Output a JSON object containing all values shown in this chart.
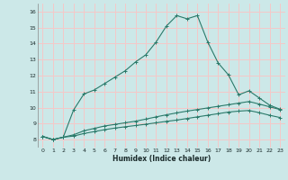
{
  "xlabel": "Humidex (Indice chaleur)",
  "bg_color": "#cce8e8",
  "grid_color": "#f5c8c8",
  "line_color": "#2a7a6a",
  "xlim": [
    -0.5,
    23.5
  ],
  "ylim": [
    7.5,
    16.5
  ],
  "xticks": [
    0,
    1,
    2,
    3,
    4,
    5,
    6,
    7,
    8,
    9,
    10,
    11,
    12,
    13,
    14,
    15,
    16,
    17,
    18,
    19,
    20,
    21,
    22,
    23
  ],
  "yticks": [
    8,
    9,
    10,
    11,
    12,
    13,
    14,
    15,
    16
  ],
  "line1_x": [
    0,
    1,
    2,
    3,
    4,
    5,
    6,
    7,
    8,
    9,
    10,
    11,
    12,
    13,
    14,
    15,
    16,
    17,
    18,
    19,
    20,
    21,
    22,
    23
  ],
  "line1_y": [
    8.2,
    8.0,
    8.15,
    9.85,
    10.85,
    11.1,
    11.5,
    11.9,
    12.3,
    12.85,
    13.3,
    14.1,
    15.1,
    15.75,
    15.55,
    15.75,
    14.1,
    12.8,
    12.05,
    10.8,
    11.05,
    10.6,
    10.15,
    9.9
  ],
  "line2_x": [
    0,
    1,
    2,
    3,
    4,
    5,
    6,
    7,
    8,
    9,
    10,
    11,
    12,
    13,
    14,
    15,
    16,
    17,
    18,
    19,
    20,
    21,
    22,
    23
  ],
  "line2_y": [
    8.2,
    8.0,
    8.15,
    8.3,
    8.55,
    8.7,
    8.85,
    8.95,
    9.05,
    9.15,
    9.28,
    9.42,
    9.55,
    9.67,
    9.78,
    9.88,
    9.98,
    10.08,
    10.18,
    10.28,
    10.38,
    10.22,
    10.05,
    9.88
  ],
  "line3_x": [
    0,
    1,
    2,
    3,
    4,
    5,
    6,
    7,
    8,
    9,
    10,
    11,
    12,
    13,
    14,
    15,
    16,
    17,
    18,
    19,
    20,
    21,
    22,
    23
  ],
  "line3_y": [
    8.2,
    8.0,
    8.15,
    8.22,
    8.38,
    8.5,
    8.62,
    8.72,
    8.8,
    8.88,
    8.96,
    9.05,
    9.14,
    9.22,
    9.32,
    9.42,
    9.52,
    9.62,
    9.72,
    9.78,
    9.82,
    9.68,
    9.52,
    9.38
  ]
}
